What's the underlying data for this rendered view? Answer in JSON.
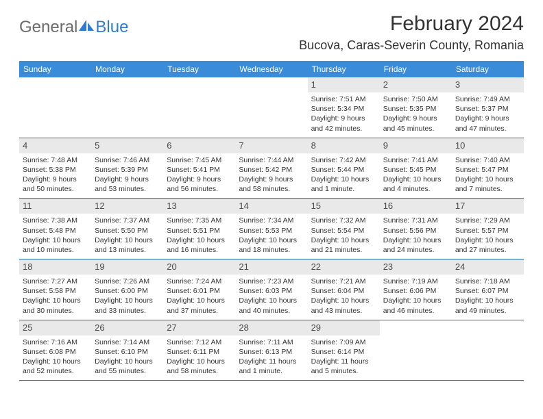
{
  "logo": {
    "text1": "General",
    "text2": "Blue"
  },
  "header": {
    "month_title": "February 2024",
    "location": "Bucova, Caras-Severin County, Romania"
  },
  "colors": {
    "header_bg": "#3a8bd8",
    "header_text": "#ffffff",
    "row_divider": "#2568a8",
    "day_bar_bg": "#e9e9e9",
    "text": "#333333",
    "logo_grey": "#6b6b6b",
    "logo_blue": "#2e7cd1"
  },
  "weekdays": [
    "Sunday",
    "Monday",
    "Tuesday",
    "Wednesday",
    "Thursday",
    "Friday",
    "Saturday"
  ],
  "weeks": [
    [
      null,
      null,
      null,
      null,
      {
        "n": "1",
        "sunrise": "7:51 AM",
        "sunset": "5:34 PM",
        "daylight": "9 hours and 42 minutes."
      },
      {
        "n": "2",
        "sunrise": "7:50 AM",
        "sunset": "5:35 PM",
        "daylight": "9 hours and 45 minutes."
      },
      {
        "n": "3",
        "sunrise": "7:49 AM",
        "sunset": "5:37 PM",
        "daylight": "9 hours and 47 minutes."
      }
    ],
    [
      {
        "n": "4",
        "sunrise": "7:48 AM",
        "sunset": "5:38 PM",
        "daylight": "9 hours and 50 minutes."
      },
      {
        "n": "5",
        "sunrise": "7:46 AM",
        "sunset": "5:39 PM",
        "daylight": "9 hours and 53 minutes."
      },
      {
        "n": "6",
        "sunrise": "7:45 AM",
        "sunset": "5:41 PM",
        "daylight": "9 hours and 56 minutes."
      },
      {
        "n": "7",
        "sunrise": "7:44 AM",
        "sunset": "5:42 PM",
        "daylight": "9 hours and 58 minutes."
      },
      {
        "n": "8",
        "sunrise": "7:42 AM",
        "sunset": "5:44 PM",
        "daylight": "10 hours and 1 minute."
      },
      {
        "n": "9",
        "sunrise": "7:41 AM",
        "sunset": "5:45 PM",
        "daylight": "10 hours and 4 minutes."
      },
      {
        "n": "10",
        "sunrise": "7:40 AM",
        "sunset": "5:47 PM",
        "daylight": "10 hours and 7 minutes."
      }
    ],
    [
      {
        "n": "11",
        "sunrise": "7:38 AM",
        "sunset": "5:48 PM",
        "daylight": "10 hours and 10 minutes."
      },
      {
        "n": "12",
        "sunrise": "7:37 AM",
        "sunset": "5:50 PM",
        "daylight": "10 hours and 13 minutes."
      },
      {
        "n": "13",
        "sunrise": "7:35 AM",
        "sunset": "5:51 PM",
        "daylight": "10 hours and 16 minutes."
      },
      {
        "n": "14",
        "sunrise": "7:34 AM",
        "sunset": "5:53 PM",
        "daylight": "10 hours and 18 minutes."
      },
      {
        "n": "15",
        "sunrise": "7:32 AM",
        "sunset": "5:54 PM",
        "daylight": "10 hours and 21 minutes."
      },
      {
        "n": "16",
        "sunrise": "7:31 AM",
        "sunset": "5:56 PM",
        "daylight": "10 hours and 24 minutes."
      },
      {
        "n": "17",
        "sunrise": "7:29 AM",
        "sunset": "5:57 PM",
        "daylight": "10 hours and 27 minutes."
      }
    ],
    [
      {
        "n": "18",
        "sunrise": "7:27 AM",
        "sunset": "5:58 PM",
        "daylight": "10 hours and 30 minutes."
      },
      {
        "n": "19",
        "sunrise": "7:26 AM",
        "sunset": "6:00 PM",
        "daylight": "10 hours and 33 minutes."
      },
      {
        "n": "20",
        "sunrise": "7:24 AM",
        "sunset": "6:01 PM",
        "daylight": "10 hours and 37 minutes."
      },
      {
        "n": "21",
        "sunrise": "7:23 AM",
        "sunset": "6:03 PM",
        "daylight": "10 hours and 40 minutes."
      },
      {
        "n": "22",
        "sunrise": "7:21 AM",
        "sunset": "6:04 PM",
        "daylight": "10 hours and 43 minutes."
      },
      {
        "n": "23",
        "sunrise": "7:19 AM",
        "sunset": "6:06 PM",
        "daylight": "10 hours and 46 minutes."
      },
      {
        "n": "24",
        "sunrise": "7:18 AM",
        "sunset": "6:07 PM",
        "daylight": "10 hours and 49 minutes."
      }
    ],
    [
      {
        "n": "25",
        "sunrise": "7:16 AM",
        "sunset": "6:08 PM",
        "daylight": "10 hours and 52 minutes."
      },
      {
        "n": "26",
        "sunrise": "7:14 AM",
        "sunset": "6:10 PM",
        "daylight": "10 hours and 55 minutes."
      },
      {
        "n": "27",
        "sunrise": "7:12 AM",
        "sunset": "6:11 PM",
        "daylight": "10 hours and 58 minutes."
      },
      {
        "n": "28",
        "sunrise": "7:11 AM",
        "sunset": "6:13 PM",
        "daylight": "11 hours and 1 minute."
      },
      {
        "n": "29",
        "sunrise": "7:09 AM",
        "sunset": "6:14 PM",
        "daylight": "11 hours and 5 minutes."
      },
      null,
      null
    ]
  ],
  "labels": {
    "sunrise": "Sunrise: ",
    "sunset": "Sunset: ",
    "daylight": "Daylight: "
  }
}
